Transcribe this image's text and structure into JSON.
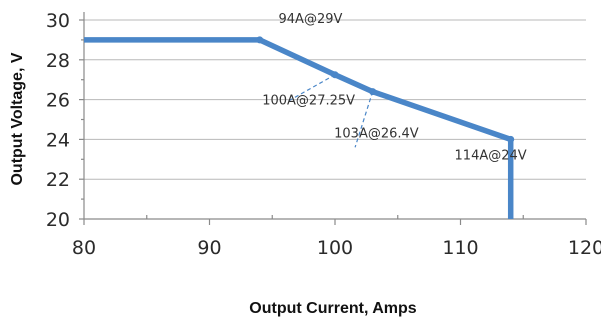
{
  "chart_data": {
    "type": "line",
    "title": "",
    "xlabel": "Output Current, Amps",
    "ylabel": "Output Voltage, V",
    "xlim": [
      80,
      120
    ],
    "ylim": [
      20,
      30
    ],
    "xticks": [
      80,
      90,
      100,
      110,
      120
    ],
    "yticks": [
      20,
      22,
      24,
      26,
      28,
      30
    ],
    "grid": true,
    "series": [
      {
        "color": "#4a86c8",
        "points": [
          {
            "x": 80,
            "y": 29
          },
          {
            "x": 94,
            "y": 29
          },
          {
            "x": 100,
            "y": 27.25
          },
          {
            "x": 103,
            "y": 26.4
          },
          {
            "x": 114,
            "y": 24
          },
          {
            "x": 114,
            "y": 20
          }
        ]
      }
    ],
    "annotations": [
      {
        "text": "94A@29V",
        "x": 94,
        "y": 29
      },
      {
        "text": "100A@27.25V",
        "x": 100,
        "y": 27.25
      },
      {
        "text": "103A@26.4V",
        "x": 103,
        "y": 26.4
      },
      {
        "text": "114A@24V",
        "x": 114,
        "y": 24
      }
    ]
  }
}
